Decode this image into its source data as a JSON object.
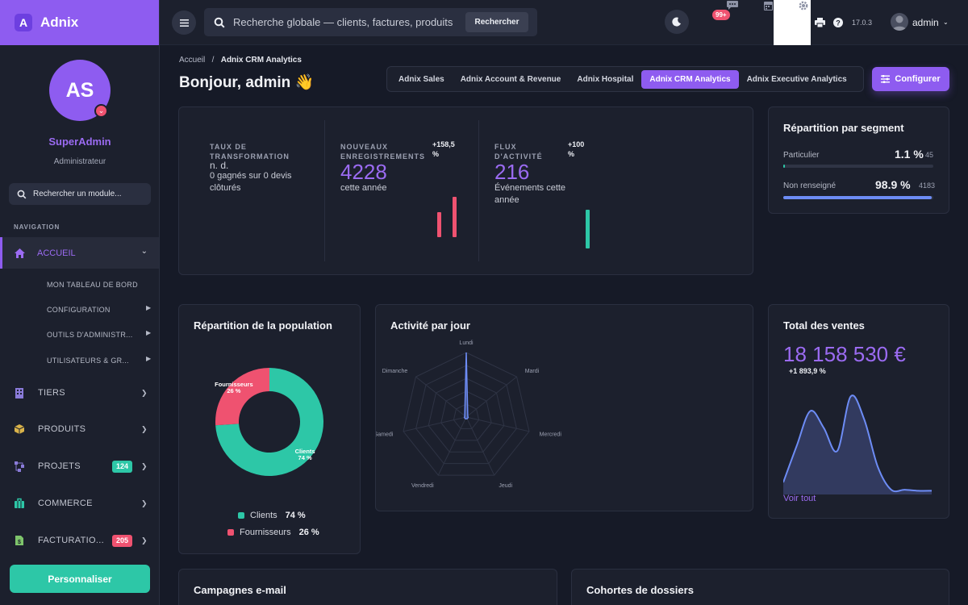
{
  "brand": {
    "name": "Adnix",
    "logo_letter": "A"
  },
  "profile": {
    "initials": "AS",
    "role": "SuperAdmin",
    "subtitle": "Administrateur"
  },
  "sidebar": {
    "search_placeholder": "Rechercher un module...",
    "heading": "NAVIGATION",
    "active": {
      "label": "ACCUEIL",
      "icon": "home-icon"
    },
    "subitems": [
      "MON TABLEAU DE BORD",
      "CONFIGURATION",
      "OUTILS D'ADMINISTR...",
      "UTILISATEURS & GR..."
    ],
    "items": [
      {
        "label": "TIERS",
        "icon": "building-icon",
        "badge": ""
      },
      {
        "label": "PRODUITS",
        "icon": "box-icon",
        "badge": ""
      },
      {
        "label": "PROJETS",
        "icon": "project-icon",
        "badge": "124",
        "badge_color": "#2dc7a7"
      },
      {
        "label": "COMMERCE",
        "icon": "briefcase-icon",
        "badge": ""
      },
      {
        "label": "FACTURATIO...",
        "icon": "invoice-icon",
        "badge": "205",
        "badge_color": "#ef5270"
      }
    ],
    "customize_label": "Personnaliser"
  },
  "topbar": {
    "search_placeholder": "Recherche globale — clients, factures, produits",
    "search_button": "Rechercher",
    "notif_count": "99+",
    "version": "17.0.3",
    "user": "admin"
  },
  "breadcrumb": {
    "home": "Accueil",
    "current": "Adnix CRM Analytics"
  },
  "page_title": "Bonjour, admin 👋",
  "tabs": [
    "Adnix Sales",
    "Adnix Account & Revenue",
    "Adnix Hospital",
    "Adnix CRM Analytics",
    "Adnix Executive Analytics"
  ],
  "active_tab": "Adnix CRM Analytics",
  "configure_label": "Configurer",
  "kpis": [
    {
      "label": "TAUX DE TRANSFORMATION",
      "value": "n. d.",
      "sub": "0 gagnés sur 0 devis clôturés",
      "delta": ""
    },
    {
      "label": "NOUVEAUX ENREGISTREMENTS",
      "value": "4228",
      "sub": "cette année",
      "delta": "+158,5 %"
    },
    {
      "label": "FLUX D'ACTIVITÉ",
      "value": "216",
      "sub": "Événements cette année",
      "delta": "+100 %"
    }
  ],
  "segment_card": {
    "title": "Répartition par segment",
    "rows": [
      {
        "label": "Particulier",
        "pct": "1.1 %",
        "count": "45",
        "fraction": 0.011,
        "color": "#2dc7a7"
      },
      {
        "label": "Non renseigné",
        "pct": "98.9 %",
        "count": "4183",
        "fraction": 0.989,
        "color": "#6d8cf5"
      }
    ]
  },
  "population_card": {
    "title": "Répartition de la population",
    "legend": [
      {
        "name": "Clients",
        "pct": "74 %",
        "color": "#2dc7a7"
      },
      {
        "name": "Fournisseurs",
        "pct": "26 %",
        "color": "#ef5270"
      }
    ]
  },
  "activity_card": {
    "title": "Activité par jour"
  },
  "sales_card": {
    "title": "Total des ventes",
    "value": "18 158 530 €",
    "delta": "+1 893,9 %",
    "link": "Voir tout"
  },
  "bottom_cards": {
    "left_title": "Campagnes e-mail",
    "right_title": "Cohortes de dossiers"
  },
  "chart_data": [
    {
      "type": "pie",
      "categories": [
        "Clients",
        "Fournisseurs"
      ],
      "values": [
        74,
        26
      ],
      "colors": [
        "#2dc7a7",
        "#ef5270"
      ],
      "slice_labels": [
        "Clients\n74 %",
        "Fournisseurs\n26 %"
      ]
    },
    {
      "type": "radar",
      "categories": [
        "Lundi",
        "Mardi",
        "Mercredi",
        "Jeudi",
        "Vendredi",
        "Samedi",
        "Dimanche"
      ],
      "values": [
        1.0,
        0.03,
        0.03,
        0.03,
        0.03,
        0.03,
        0.03
      ],
      "color": "#6d8cf5"
    },
    {
      "type": "area",
      "values": [
        0.1,
        0.45,
        0.78,
        0.62,
        0.4,
        0.92,
        0.7,
        0.25,
        0.03,
        0.03,
        0.02,
        0.02
      ],
      "color": "#6d8cf5"
    }
  ]
}
